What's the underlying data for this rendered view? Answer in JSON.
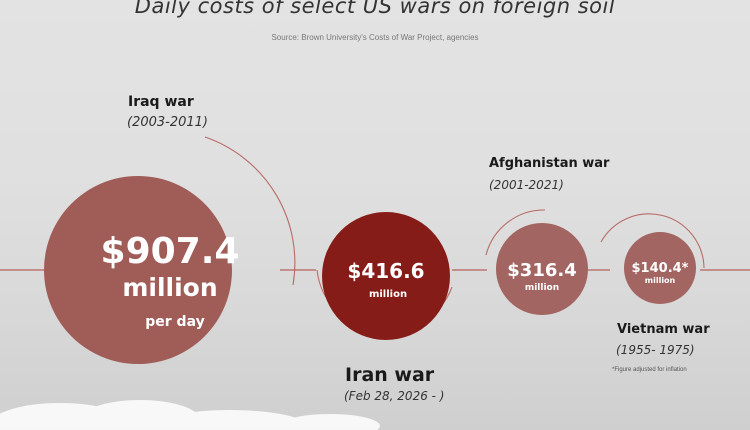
{
  "header": {
    "title": "Daily costs of select US wars on foreign soil",
    "source": "Source: Brown University's Costs of War Project, agencies"
  },
  "footnote": "*Figure adjusted for inflation",
  "colors": {
    "iraq": "#a05c57",
    "iran": "#861c17",
    "afghanistan": "#a36562",
    "vietnam": "#a36562",
    "ring": "#b76b66",
    "line": "#b5615d"
  },
  "chart_data": {
    "type": "bubble",
    "unit": "million",
    "items": [
      {
        "name": "Iraq war",
        "years": "(2003-2011)",
        "value": 907.4,
        "value_label": "$907.4",
        "unit_label": "million",
        "extra_label": "per day"
      },
      {
        "name": "Iran war",
        "years": "(Feb 28, 2026 - )",
        "value": 416.6,
        "value_label": "$416.6",
        "unit_label": "million"
      },
      {
        "name": "Afghanistan war",
        "years": "(2001-2021)",
        "value": 316.4,
        "value_label": "$316.4",
        "unit_label": "million"
      },
      {
        "name": "Vietnam war",
        "years": "(1955- 1975)",
        "value": 140.4,
        "value_label": "$140.4*",
        "unit_label": "million"
      }
    ]
  }
}
